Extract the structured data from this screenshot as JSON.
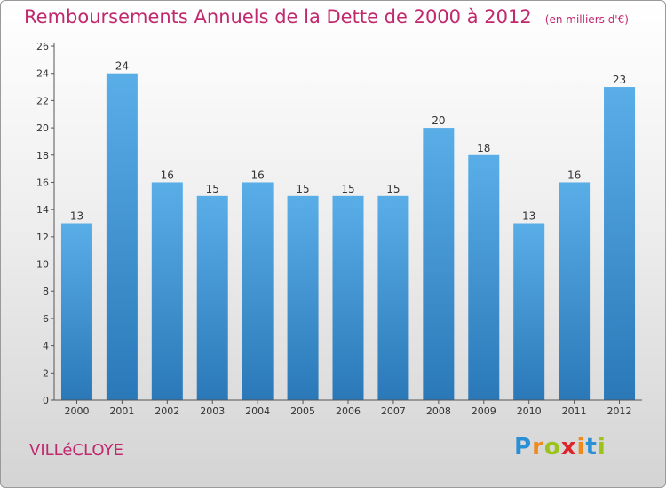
{
  "title": "Remboursements Annuels de la Dette de 2000 à 2012",
  "unit_note": "(en milliers d'€)",
  "commune": "VILLéCLOYE",
  "brand": {
    "letters": [
      "P",
      "r",
      "o",
      "x",
      "i",
      "t",
      "i"
    ],
    "colors": [
      "#2b8fd6",
      "#f08a1c",
      "#9bc31c",
      "#e0222a",
      "#f08a1c",
      "#2b8fd6",
      "#9bc31c"
    ]
  },
  "colors": {
    "title": "#c2286e",
    "bar_top": "#5aaee8",
    "bar_bottom": "#2a78b8"
  },
  "chart_data": {
    "type": "bar",
    "categories": [
      "2000",
      "2001",
      "2002",
      "2003",
      "2004",
      "2005",
      "2006",
      "2007",
      "2008",
      "2009",
      "2010",
      "2011",
      "2012"
    ],
    "values": [
      13,
      24,
      16,
      15,
      16,
      15,
      15,
      15,
      20,
      18,
      13,
      16,
      23
    ],
    "yticks": [
      0,
      2,
      4,
      6,
      8,
      10,
      12,
      14,
      16,
      18,
      20,
      22,
      24,
      26
    ],
    "ylim": [
      0,
      26
    ],
    "grid": false,
    "data_labels": true
  }
}
